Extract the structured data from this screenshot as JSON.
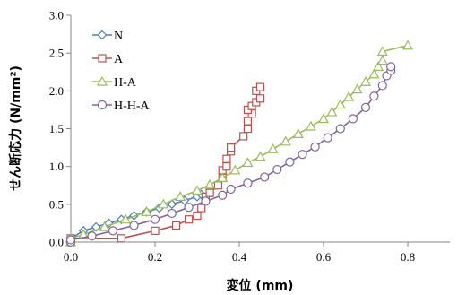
{
  "chart_data": {
    "type": "line",
    "xlabel": "変位 (mm)",
    "ylabel": "せん断応力 (N/mm²)",
    "xlim": [
      0.0,
      0.9
    ],
    "ylim": [
      0.0,
      3.0
    ],
    "xticks": [
      "0.0",
      "0.2",
      "0.4",
      "0.6",
      "0.8"
    ],
    "yticks": [
      "0.0",
      "0.5",
      "1.0",
      "1.5",
      "2.0",
      "2.5",
      "3.0"
    ],
    "grid": false,
    "legend_position": "top-left",
    "series": [
      {
        "name": "N",
        "marker": "diamond",
        "color": "#4a7ebb",
        "points": [
          [
            0.0,
            0.0
          ],
          [
            0.0,
            0.05
          ],
          [
            0.03,
            0.15
          ],
          [
            0.06,
            0.2
          ],
          [
            0.09,
            0.25
          ],
          [
            0.12,
            0.3
          ],
          [
            0.15,
            0.35
          ],
          [
            0.18,
            0.4
          ],
          [
            0.21,
            0.45
          ],
          [
            0.24,
            0.5
          ],
          [
            0.27,
            0.55
          ],
          [
            0.3,
            0.6
          ],
          [
            0.31,
            0.63
          ]
        ]
      },
      {
        "name": "A",
        "marker": "square",
        "color": "#c0504d",
        "points": [
          [
            0.0,
            0.0
          ],
          [
            0.0,
            0.05
          ],
          [
            0.12,
            0.05
          ],
          [
            0.2,
            0.15
          ],
          [
            0.25,
            0.22
          ],
          [
            0.28,
            0.3
          ],
          [
            0.3,
            0.35
          ],
          [
            0.31,
            0.45
          ],
          [
            0.32,
            0.6
          ],
          [
            0.33,
            0.65
          ],
          [
            0.35,
            0.75
          ],
          [
            0.36,
            0.85
          ],
          [
            0.36,
            0.95
          ],
          [
            0.37,
            1.0
          ],
          [
            0.37,
            1.1
          ],
          [
            0.38,
            1.2
          ],
          [
            0.38,
            1.25
          ],
          [
            0.41,
            1.4
          ],
          [
            0.42,
            1.5
          ],
          [
            0.42,
            1.6
          ],
          [
            0.43,
            1.7
          ],
          [
            0.42,
            1.75
          ],
          [
            0.43,
            1.8
          ],
          [
            0.44,
            1.85
          ],
          [
            0.45,
            1.9
          ],
          [
            0.44,
            2.0
          ],
          [
            0.45,
            2.05
          ]
        ]
      },
      {
        "name": "H-A",
        "marker": "triangle",
        "color": "#9bbb59",
        "points": [
          [
            0.0,
            0.0
          ],
          [
            0.0,
            0.05
          ],
          [
            0.03,
            0.1
          ],
          [
            0.08,
            0.2
          ],
          [
            0.13,
            0.3
          ],
          [
            0.18,
            0.4
          ],
          [
            0.22,
            0.5
          ],
          [
            0.26,
            0.6
          ],
          [
            0.3,
            0.68
          ],
          [
            0.33,
            0.76
          ],
          [
            0.36,
            0.85
          ],
          [
            0.39,
            0.95
          ],
          [
            0.42,
            1.05
          ],
          [
            0.45,
            1.13
          ],
          [
            0.48,
            1.23
          ],
          [
            0.51,
            1.33
          ],
          [
            0.54,
            1.43
          ],
          [
            0.57,
            1.53
          ],
          [
            0.6,
            1.63
          ],
          [
            0.62,
            1.72
          ],
          [
            0.64,
            1.82
          ],
          [
            0.66,
            1.92
          ],
          [
            0.68,
            2.02
          ],
          [
            0.7,
            2.12
          ],
          [
            0.72,
            2.22
          ],
          [
            0.73,
            2.32
          ],
          [
            0.74,
            2.4
          ],
          [
            0.74,
            2.52
          ],
          [
            0.8,
            2.6
          ]
        ]
      },
      {
        "name": "H-H-A",
        "marker": "circle",
        "color": "#8064a2",
        "points": [
          [
            0.0,
            0.0
          ],
          [
            0.0,
            0.03
          ],
          [
            0.05,
            0.08
          ],
          [
            0.1,
            0.15
          ],
          [
            0.15,
            0.22
          ],
          [
            0.2,
            0.3
          ],
          [
            0.24,
            0.38
          ],
          [
            0.28,
            0.46
          ],
          [
            0.32,
            0.54
          ],
          [
            0.36,
            0.62
          ],
          [
            0.38,
            0.7
          ],
          [
            0.42,
            0.78
          ],
          [
            0.46,
            0.86
          ],
          [
            0.49,
            0.96
          ],
          [
            0.52,
            1.06
          ],
          [
            0.55,
            1.16
          ],
          [
            0.58,
            1.26
          ],
          [
            0.61,
            1.38
          ],
          [
            0.64,
            1.5
          ],
          [
            0.67,
            1.63
          ],
          [
            0.7,
            1.78
          ],
          [
            0.72,
            1.93
          ],
          [
            0.74,
            2.07
          ],
          [
            0.75,
            2.2
          ],
          [
            0.76,
            2.27
          ],
          [
            0.76,
            2.32
          ]
        ]
      }
    ]
  }
}
